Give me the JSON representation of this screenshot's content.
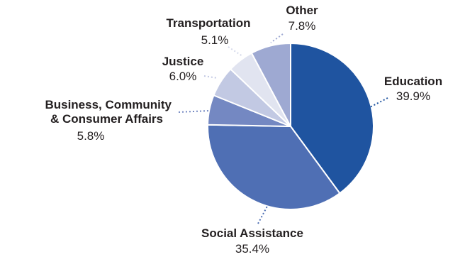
{
  "chart_data": {
    "type": "pie",
    "title": "",
    "slices": [
      {
        "label": "Education",
        "value": 39.9,
        "value_label": "39.9%",
        "color": "#1f54a0",
        "leader_color": "#1f54a0"
      },
      {
        "label": "Social Assistance",
        "value": 35.4,
        "value_label": "35.4%",
        "color": "#4f6fb4",
        "leader_color": "#4f6fb4"
      },
      {
        "label": "Business, Community & Consumer Affairs",
        "label_lines": [
          "Business, Community",
          "& Consumer Affairs"
        ],
        "value": 5.8,
        "value_label": "5.8%",
        "color": "#7488c2",
        "leader_color": "#7488c2"
      },
      {
        "label": "Justice",
        "value": 6.0,
        "value_label": "6.0%",
        "color": "#c2c9e3",
        "leader_color": "#c2c9e3"
      },
      {
        "label": "Transportation",
        "value": 5.1,
        "value_label": "5.1%",
        "color": "#e1e4f0",
        "leader_color": "#d5d9ea"
      },
      {
        "label": "Other",
        "value": 7.8,
        "value_label": "7.8%",
        "color": "#9ea9d2",
        "leader_color": "#9ea9d2"
      }
    ],
    "start": "12 o'clock",
    "direction": "clockwise"
  }
}
